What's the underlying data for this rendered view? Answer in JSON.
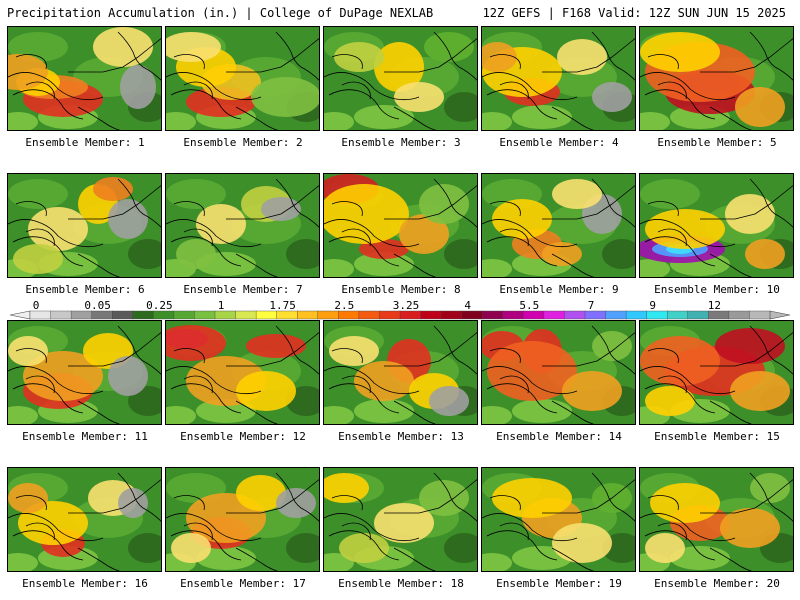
{
  "header": {
    "title": "Precipitation Accumulation (in.) | College of DuPage NEXLAB",
    "model_info": "12Z GEFS | F168 Valid: 12Z SUN JUN 15 2025"
  },
  "label_prefix": "Ensemble Member: ",
  "members": [
    {
      "id": "1",
      "blobs": [
        [
          55,
          72,
          40,
          18,
          "#e23020"
        ],
        [
          45,
          60,
          35,
          12,
          "#f08020"
        ],
        [
          30,
          55,
          22,
          14,
          "#ffd000"
        ],
        [
          10,
          45,
          30,
          18,
          "#f0a020"
        ],
        [
          115,
          20,
          30,
          20,
          "#f8e070"
        ],
        [
          130,
          60,
          18,
          22,
          "#a0a0a0"
        ]
      ]
    },
    {
      "id": "2",
      "blobs": [
        [
          55,
          75,
          35,
          15,
          "#e23020"
        ],
        [
          65,
          55,
          30,
          18,
          "#f0c020"
        ],
        [
          40,
          40,
          30,
          20,
          "#ffd000"
        ],
        [
          120,
          70,
          35,
          20,
          "#80c040"
        ],
        [
          25,
          20,
          30,
          15,
          "#f8e070"
        ]
      ]
    },
    {
      "id": "3",
      "blobs": [
        [
          75,
          40,
          25,
          25,
          "#ffd000"
        ],
        [
          95,
          70,
          25,
          15,
          "#f8e070"
        ],
        [
          35,
          30,
          25,
          15,
          "#c0d040"
        ],
        [
          125,
          20,
          25,
          15,
          "#60b030"
        ]
      ]
    },
    {
      "id": "4",
      "blobs": [
        [
          50,
          65,
          28,
          14,
          "#e23020"
        ],
        [
          40,
          45,
          40,
          25,
          "#ffd000"
        ],
        [
          100,
          30,
          25,
          18,
          "#f8e070"
        ],
        [
          130,
          70,
          20,
          15,
          "#a0a0a0"
        ],
        [
          15,
          30,
          20,
          15,
          "#f0a020"
        ]
      ]
    },
    {
      "id": "5",
      "blobs": [
        [
          70,
          65,
          45,
          22,
          "#c01020"
        ],
        [
          70,
          55,
          30,
          10,
          "#a01050"
        ],
        [
          60,
          45,
          55,
          30,
          "#f06020"
        ],
        [
          40,
          25,
          40,
          20,
          "#ffd000"
        ],
        [
          120,
          80,
          25,
          20,
          "#f0a020"
        ]
      ]
    },
    {
      "id": "6",
      "blobs": [
        [
          50,
          55,
          30,
          22,
          "#f8e070"
        ],
        [
          90,
          30,
          20,
          20,
          "#ffd000"
        ],
        [
          120,
          45,
          20,
          20,
          "#a0a0a0"
        ],
        [
          30,
          85,
          25,
          15,
          "#c0d040"
        ],
        [
          105,
          15,
          20,
          12,
          "#f08020"
        ]
      ]
    },
    {
      "id": "7",
      "blobs": [
        [
          55,
          50,
          25,
          20,
          "#f8e070"
        ],
        [
          100,
          30,
          25,
          18,
          "#c0d040"
        ],
        [
          115,
          35,
          20,
          12,
          "#a0a0a0"
        ],
        [
          30,
          80,
          20,
          15,
          "#80c040"
        ]
      ]
    },
    {
      "id": "8",
      "blobs": [
        [
          25,
          15,
          30,
          15,
          "#d02020"
        ],
        [
          60,
          75,
          25,
          10,
          "#e23020"
        ],
        [
          40,
          40,
          45,
          30,
          "#ffd000"
        ],
        [
          100,
          60,
          25,
          20,
          "#f0a020"
        ],
        [
          120,
          30,
          25,
          20,
          "#80c040"
        ]
      ]
    },
    {
      "id": "9",
      "blobs": [
        [
          55,
          70,
          25,
          15,
          "#f08020"
        ],
        [
          40,
          45,
          30,
          20,
          "#ffd000"
        ],
        [
          120,
          40,
          20,
          20,
          "#a0a0a0"
        ],
        [
          95,
          20,
          25,
          15,
          "#f8e070"
        ],
        [
          80,
          80,
          20,
          12,
          "#f0a020"
        ]
      ]
    },
    {
      "id": "10",
      "blobs": [
        [
          40,
          75,
          45,
          14,
          "#a010b0"
        ],
        [
          40,
          75,
          28,
          8,
          "#50a0ff"
        ],
        [
          40,
          75,
          14,
          5,
          "#40e0ff"
        ],
        [
          45,
          55,
          40,
          20,
          "#ffd000"
        ],
        [
          110,
          40,
          25,
          20,
          "#f8e070"
        ],
        [
          125,
          80,
          20,
          15,
          "#f0a020"
        ]
      ]
    },
    {
      "id": "11",
      "blobs": [
        [
          50,
          70,
          35,
          18,
          "#e23020"
        ],
        [
          55,
          55,
          40,
          25,
          "#f0a020"
        ],
        [
          100,
          30,
          25,
          18,
          "#ffd000"
        ],
        [
          120,
          55,
          20,
          20,
          "#a0a0a0"
        ],
        [
          20,
          30,
          20,
          15,
          "#f8e070"
        ]
      ]
    },
    {
      "id": "12",
      "blobs": [
        [
          20,
          18,
          22,
          10,
          "#a010b0"
        ],
        [
          25,
          22,
          35,
          18,
          "#e23020"
        ],
        [
          110,
          25,
          30,
          12,
          "#e23020"
        ],
        [
          60,
          60,
          40,
          25,
          "#f0a020"
        ],
        [
          100,
          70,
          30,
          20,
          "#ffd000"
        ]
      ]
    },
    {
      "id": "13",
      "blobs": [
        [
          85,
          40,
          22,
          22,
          "#e23020"
        ],
        [
          60,
          60,
          30,
          20,
          "#f0a020"
        ],
        [
          110,
          70,
          25,
          18,
          "#ffd000"
        ],
        [
          30,
          30,
          25,
          15,
          "#f8e070"
        ],
        [
          125,
          80,
          20,
          15,
          "#a0a0a0"
        ]
      ]
    },
    {
      "id": "14",
      "blobs": [
        [
          20,
          25,
          22,
          15,
          "#e23020"
        ],
        [
          60,
          30,
          20,
          22,
          "#e23020"
        ],
        [
          50,
          50,
          45,
          30,
          "#f06020"
        ],
        [
          110,
          70,
          30,
          20,
          "#f0a020"
        ],
        [
          130,
          25,
          20,
          15,
          "#80c040"
        ]
      ]
    },
    {
      "id": "15",
      "blobs": [
        [
          75,
          50,
          50,
          25,
          "#e23020"
        ],
        [
          110,
          25,
          35,
          18,
          "#c01020"
        ],
        [
          40,
          40,
          40,
          25,
          "#f06020"
        ],
        [
          120,
          70,
          30,
          20,
          "#f0a020"
        ],
        [
          30,
          80,
          25,
          15,
          "#ffd000"
        ]
      ]
    },
    {
      "id": "16",
      "blobs": [
        [
          55,
          75,
          22,
          14,
          "#e23020"
        ],
        [
          45,
          55,
          35,
          22,
          "#ffd000"
        ],
        [
          105,
          30,
          25,
          18,
          "#f8e070"
        ],
        [
          125,
          35,
          15,
          15,
          "#a0a0a0"
        ],
        [
          20,
          30,
          20,
          15,
          "#f0a020"
        ]
      ]
    },
    {
      "id": "17",
      "blobs": [
        [
          55,
          65,
          30,
          16,
          "#e23020"
        ],
        [
          60,
          50,
          40,
          25,
          "#f0a020"
        ],
        [
          95,
          25,
          25,
          18,
          "#ffd000"
        ],
        [
          130,
          35,
          20,
          15,
          "#a0a0a0"
        ],
        [
          25,
          80,
          20,
          15,
          "#f8e070"
        ]
      ]
    },
    {
      "id": "18",
      "blobs": [
        [
          20,
          20,
          25,
          15,
          "#ffd000"
        ],
        [
          80,
          55,
          30,
          20,
          "#f8e070"
        ],
        [
          120,
          30,
          25,
          18,
          "#80c040"
        ],
        [
          40,
          80,
          25,
          15,
          "#c0d040"
        ]
      ]
    },
    {
      "id": "19",
      "blobs": [
        [
          70,
          50,
          30,
          20,
          "#f0a020"
        ],
        [
          50,
          30,
          40,
          20,
          "#ffd000"
        ],
        [
          100,
          75,
          30,
          20,
          "#f8e070"
        ],
        [
          130,
          30,
          20,
          15,
          "#60b030"
        ]
      ]
    },
    {
      "id": "20",
      "blobs": [
        [
          60,
          55,
          30,
          18,
          "#f06020"
        ],
        [
          45,
          35,
          35,
          20,
          "#ffd000"
        ],
        [
          110,
          60,
          30,
          20,
          "#f0a020"
        ],
        [
          25,
          80,
          20,
          15,
          "#f8e070"
        ],
        [
          130,
          20,
          20,
          15,
          "#80c040"
        ]
      ]
    }
  ],
  "colorbar": {
    "ticks": [
      "0",
      "0.05",
      "0.25",
      "1",
      "1.75",
      "2.5",
      "3.25",
      "4",
      "5.5",
      "7",
      "9",
      "12"
    ],
    "colors": [
      "#e6e6e6",
      "#c8c8c8",
      "#a0a0a0",
      "#787878",
      "#5a5a5a",
      "#2e6b1e",
      "#3d8f2a",
      "#56a832",
      "#78c040",
      "#a8d448",
      "#d8e850",
      "#ffff40",
      "#ffe030",
      "#ffc020",
      "#ff9e10",
      "#ff7a00",
      "#f45a10",
      "#e83a18",
      "#d81e1e",
      "#c00018",
      "#a00018",
      "#800020",
      "#900050",
      "#b00080",
      "#d000b0",
      "#e020e0",
      "#b050f0",
      "#8070ff",
      "#50a0ff",
      "#30c8ff",
      "#30e8f0",
      "#40d0c8",
      "#40b0b0",
      "#7a7a7a",
      "#9a9a9a",
      "#b8b8b8"
    ]
  }
}
